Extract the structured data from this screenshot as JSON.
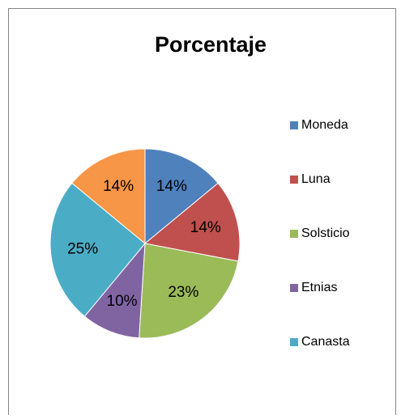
{
  "chart_data": {
    "type": "pie",
    "title": "Porcentaje",
    "categories": [
      "Moneda",
      "Luna",
      "Solsticio",
      "Etnias",
      "Canasta",
      null
    ],
    "values": [
      14,
      14,
      23,
      10,
      25,
      14
    ],
    "value_labels": [
      "14%",
      "14%",
      "23%",
      "10%",
      "25%",
      "14%"
    ],
    "colors": [
      "#4f81bd",
      "#c0504d",
      "#9bbb59",
      "#8064a2",
      "#4bacc6",
      "#f79646"
    ],
    "legend": "right"
  }
}
